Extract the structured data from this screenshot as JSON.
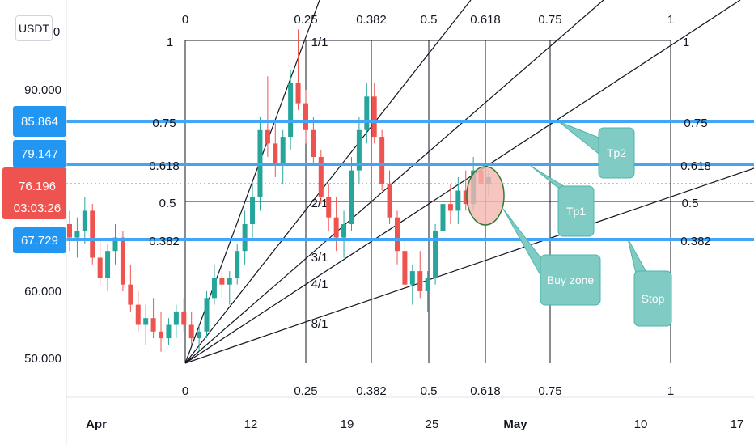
{
  "currency_label": "USDT",
  "colors": {
    "up": "#26a69a",
    "down": "#ef5350",
    "level_line": "#42a5f5",
    "callout_fill": "#80cbc4",
    "buy_zone_fill": "#f4b6b0",
    "buy_zone_stroke": "#2e7d32",
    "price_badge": "#ef5350",
    "level_badge": "#2196f3"
  },
  "chart_data": {
    "type": "candlestick",
    "instrument_quote": "USDT",
    "x_axis": {
      "ticks": [
        "Apr",
        "12",
        "19",
        "25",
        "May",
        "10",
        "17"
      ]
    },
    "y_axis": {
      "ticks": [
        "50.000",
        "60.000",
        "90.000"
      ],
      "top_partial_tick": "0",
      "range": [
        45,
        105
      ]
    },
    "current_price": {
      "value": "76.196",
      "countdown": "03:03:26"
    },
    "price_badges": [
      "85.864",
      "79.147",
      "67.729"
    ],
    "price_levels": [
      {
        "price": 85.864,
        "left_label": "0.75",
        "right_label": "0.75"
      },
      {
        "price": 79.147,
        "left_label": "0.618",
        "right_label": "0.618"
      },
      {
        "price": 67.729,
        "left_label": "0.382",
        "right_label": "0.382"
      }
    ],
    "gann_box": {
      "price_low": 49.0,
      "price_high": 98.5,
      "date_start": "Apr 7",
      "date_end": "May 12",
      "time_levels": [
        "0",
        "0.25",
        "0.382",
        "0.5",
        "0.618",
        "0.75",
        "1"
      ],
      "price_level_labels": [
        "1",
        "0.75",
        "0.618",
        "0.5",
        "0.382"
      ],
      "mid_price_label": "0.5",
      "top_right_label": "1"
    },
    "gann_fan": {
      "origin_date": "Apr 7",
      "origin_price": 49.0,
      "ratio_labels": [
        "1/1",
        "2/1",
        "3/1",
        "4/1",
        "8/1"
      ]
    },
    "candles": [
      [
        70,
        72,
        66,
        68
      ],
      [
        68,
        71,
        65,
        69
      ],
      [
        69,
        74,
        67,
        72
      ],
      [
        72,
        73,
        64,
        65
      ],
      [
        65,
        68,
        61,
        62
      ],
      [
        62,
        67,
        60,
        66
      ],
      [
        66,
        70,
        64,
        68
      ],
      [
        68,
        69,
        60,
        61
      ],
      [
        61,
        64,
        57,
        58
      ],
      [
        58,
        60,
        54,
        55
      ],
      [
        55,
        58,
        52,
        56
      ],
      [
        56,
        59,
        53,
        54
      ],
      [
        54,
        57,
        51,
        53
      ],
      [
        53,
        56,
        52,
        55
      ],
      [
        55,
        58,
        53,
        57
      ],
      [
        57,
        59,
        54,
        55
      ],
      [
        55,
        57,
        52,
        53
      ],
      [
        53,
        55,
        51,
        54
      ],
      [
        54,
        60,
        53,
        59
      ],
      [
        59,
        64,
        58,
        62
      ],
      [
        62,
        65,
        59,
        61
      ],
      [
        61,
        63,
        58,
        62
      ],
      [
        62,
        67,
        61,
        66
      ],
      [
        66,
        72,
        64,
        70
      ],
      [
        70,
        76,
        68,
        74
      ],
      [
        74,
        86,
        72,
        84
      ],
      [
        84,
        92,
        80,
        82
      ],
      [
        82,
        85,
        77,
        79
      ],
      [
        79,
        84,
        76,
        83
      ],
      [
        83,
        93,
        81,
        91
      ],
      [
        91,
        99,
        87,
        88
      ],
      [
        88,
        90,
        82,
        84
      ],
      [
        84,
        86,
        79,
        80
      ],
      [
        80,
        81,
        73,
        74
      ],
      [
        74,
        76,
        69,
        71
      ],
      [
        71,
        74,
        66,
        68
      ],
      [
        68,
        72,
        65,
        70
      ],
      [
        70,
        80,
        69,
        78
      ],
      [
        78,
        86,
        76,
        84
      ],
      [
        84,
        91,
        82,
        89
      ],
      [
        89,
        91,
        82,
        83
      ],
      [
        83,
        84,
        75,
        76
      ],
      [
        76,
        78,
        70,
        71
      ],
      [
        71,
        72,
        64,
        66
      ],
      [
        66,
        68,
        60,
        61
      ],
      [
        61,
        64,
        58,
        63
      ],
      [
        63,
        66,
        59,
        60
      ],
      [
        60,
        63,
        57,
        62
      ],
      [
        62,
        70,
        61,
        69
      ],
      [
        69,
        75,
        67,
        73
      ],
      [
        73,
        76,
        70,
        72
      ],
      [
        72,
        77,
        70,
        75
      ],
      [
        75,
        78,
        72,
        73
      ],
      [
        73,
        80,
        72,
        78
      ],
      [
        78,
        80,
        74,
        76
      ],
      [
        76,
        78,
        74,
        77
      ]
    ],
    "annotations": [
      {
        "type": "callout",
        "text": "Tp2"
      },
      {
        "type": "callout",
        "text": "Tp1"
      },
      {
        "type": "callout",
        "text": "Buy zone"
      },
      {
        "type": "callout",
        "text": "Stop"
      }
    ]
  }
}
